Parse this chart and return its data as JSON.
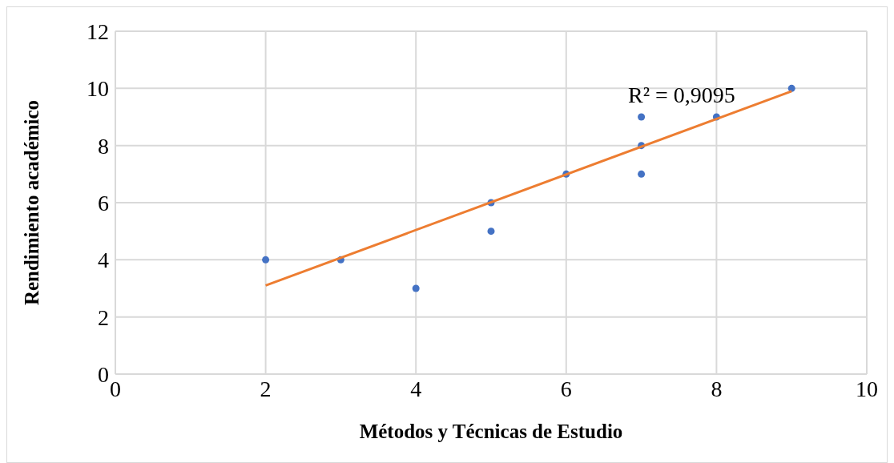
{
  "chart_data": {
    "type": "scatter",
    "xlabel": "Métodos y Técnicas de Estudio",
    "ylabel": "Rendimiento académico",
    "series": [
      {
        "color": "#4472c4",
        "x": [
          2,
          3,
          4,
          5,
          5,
          6,
          7,
          7,
          7,
          8,
          9
        ],
        "values": [
          4,
          4,
          3,
          6,
          5,
          7,
          9,
          8,
          7,
          9,
          10
        ]
      },
      {
        "type": "line",
        "marker": "none",
        "color": "#ed7d31",
        "x": [
          2,
          9
        ],
        "values": [
          3.1,
          9.9
        ]
      }
    ],
    "annotations": [
      "R² = 0,9095"
    ],
    "xlim": [
      0,
      10
    ],
    "xticks": [
      0,
      2,
      4,
      6,
      8,
      10
    ],
    "ylim": [
      0,
      12
    ],
    "yticks": [
      0,
      2,
      4,
      6,
      8,
      10,
      12
    ],
    "grid": true,
    "marker": "circle"
  }
}
